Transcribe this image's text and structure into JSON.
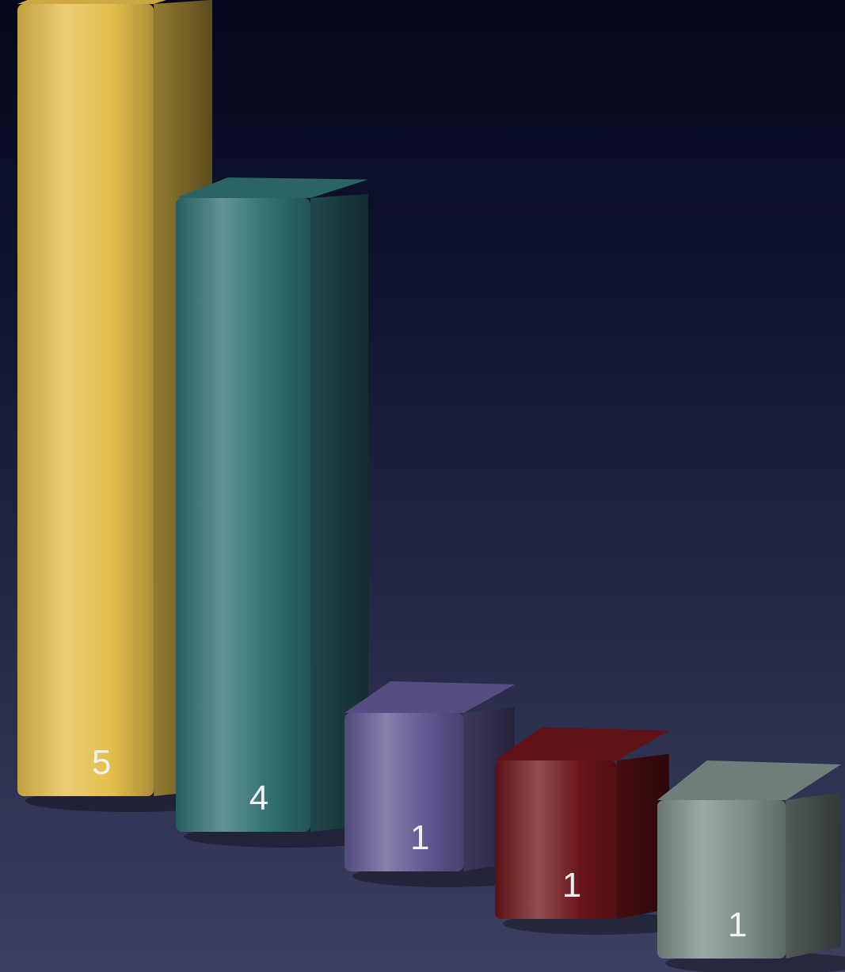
{
  "chart_data": {
    "type": "bar",
    "categories": [
      "",
      "",
      "",
      "",
      ""
    ],
    "values": [
      5,
      4,
      1,
      1,
      1
    ],
    "data_labels": [
      "5",
      "4",
      "1",
      "1",
      "1"
    ],
    "colors": [
      "#e3bd4a",
      "#2f6f72",
      "#5f5690",
      "#6b1418",
      "#7c8c86"
    ],
    "title": "",
    "xlabel": "",
    "ylabel": "",
    "ylim": [
      0,
      5
    ],
    "grid": false,
    "legend": "none",
    "style": "3d-perspective"
  }
}
